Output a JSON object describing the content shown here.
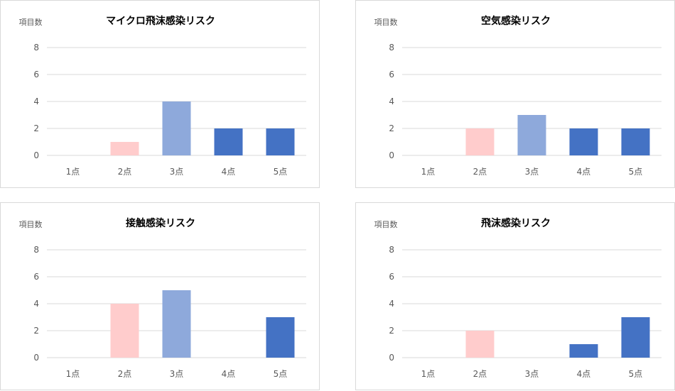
{
  "colors": {
    "1": "#4472C4",
    "2": "#FFCCCC",
    "3": "#8EA9DB",
    "4": "#4472C4",
    "5": "#4472C4"
  },
  "chart_data": [
    {
      "type": "bar",
      "title": "マイクロ飛沫感染リスク",
      "ylabel": "項目数",
      "xlabel": "",
      "categories": [
        "1点",
        "2点",
        "3点",
        "4点",
        "5点"
      ],
      "values": [
        0,
        1,
        4,
        2,
        2
      ],
      "ylim": [
        0,
        8
      ],
      "yticks": [
        0,
        2,
        4,
        6,
        8
      ],
      "grid": true
    },
    {
      "type": "bar",
      "title": "空気感染リスク",
      "ylabel": "項目数",
      "xlabel": "",
      "categories": [
        "1点",
        "2点",
        "3点",
        "4点",
        "5点"
      ],
      "values": [
        0,
        2,
        3,
        2,
        2
      ],
      "ylim": [
        0,
        8
      ],
      "yticks": [
        0,
        2,
        4,
        6,
        8
      ],
      "grid": true
    },
    {
      "type": "bar",
      "title": "接触感染リスク",
      "ylabel": "項目数",
      "xlabel": "",
      "categories": [
        "1点",
        "2点",
        "3点",
        "4点",
        "5点"
      ],
      "values": [
        0,
        4,
        5,
        0,
        3
      ],
      "ylim": [
        0,
        8
      ],
      "yticks": [
        0,
        2,
        4,
        6,
        8
      ],
      "grid": true
    },
    {
      "type": "bar",
      "title": "飛沫感染リスク",
      "ylabel": "項目数",
      "xlabel": "",
      "categories": [
        "1点",
        "2点",
        "3点",
        "4点",
        "5点"
      ],
      "values": [
        0,
        2,
        0,
        1,
        3
      ],
      "ylim": [
        0,
        8
      ],
      "yticks": [
        0,
        2,
        4,
        6,
        8
      ],
      "grid": true
    }
  ]
}
